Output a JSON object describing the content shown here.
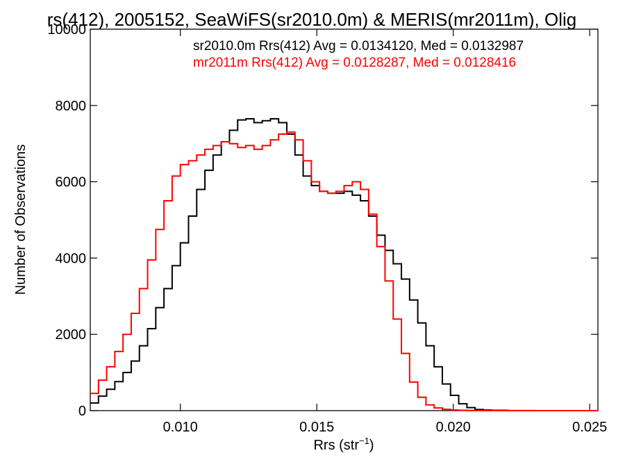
{
  "chart_data": {
    "type": "line",
    "title": "rs(412), 2005152, SeaWiFS(sr2010.0m) & MERIS(mr2011m), Olig",
    "xlabel": "Rrs (str",
    "xlabel_sup": "−1",
    "xlabel_close": ")",
    "ylabel": "Number of Observations",
    "xlim": [
      0.0067,
      0.0253
    ],
    "ylim": [
      0,
      10000
    ],
    "xticks": [
      0.01,
      0.015,
      0.02,
      0.025
    ],
    "xtick_labels": [
      "0.010",
      "0.015",
      "0.020",
      "0.025"
    ],
    "yticks": [
      0,
      2000,
      4000,
      6000,
      8000,
      10000
    ],
    "ytick_labels": [
      "0",
      "2000",
      "4000",
      "6000",
      "8000",
      "10000"
    ],
    "grid": false,
    "legend_position": "top",
    "series": [
      {
        "name": "sr2010.0m Rrs(412) Avg = 0.0134120, Med = 0.0132987",
        "color": "#000000",
        "x": [
          0.0067,
          0.007,
          0.0073,
          0.0076,
          0.0079,
          0.0082,
          0.0085,
          0.0088,
          0.0091,
          0.0094,
          0.0097,
          0.01,
          0.0103,
          0.0106,
          0.0109,
          0.0112,
          0.0115,
          0.0118,
          0.0121,
          0.0124,
          0.0127,
          0.013,
          0.0133,
          0.0136,
          0.0139,
          0.0142,
          0.0145,
          0.0148,
          0.0151,
          0.0154,
          0.0157,
          0.016,
          0.0163,
          0.0166,
          0.0169,
          0.0172,
          0.0175,
          0.0178,
          0.0181,
          0.0184,
          0.0187,
          0.019,
          0.0193,
          0.0196,
          0.0199,
          0.0202,
          0.0205,
          0.0208,
          0.0211,
          0.0214,
          0.022,
          0.023,
          0.0253
        ],
        "y": [
          200,
          380,
          560,
          760,
          1000,
          1300,
          1700,
          2150,
          2700,
          3200,
          3800,
          4400,
          5100,
          5800,
          6300,
          6700,
          7050,
          7350,
          7620,
          7650,
          7550,
          7600,
          7650,
          7550,
          7250,
          6700,
          6150,
          5900,
          5750,
          5700,
          5700,
          5750,
          5650,
          5500,
          5100,
          4600,
          4200,
          3850,
          3450,
          2900,
          2300,
          1700,
          1150,
          700,
          400,
          180,
          80,
          30,
          15,
          8,
          3,
          1,
          0
        ]
      },
      {
        "name": "mr2011m Rrs(412) Avg = 0.0128287, Med = 0.0128416",
        "color": "#ff0000",
        "x": [
          0.0067,
          0.007,
          0.0073,
          0.0076,
          0.0079,
          0.0082,
          0.0085,
          0.0088,
          0.0091,
          0.0094,
          0.0097,
          0.01,
          0.0103,
          0.0106,
          0.0109,
          0.0112,
          0.0115,
          0.0118,
          0.0121,
          0.0124,
          0.0127,
          0.013,
          0.0133,
          0.0136,
          0.0139,
          0.0142,
          0.0145,
          0.0148,
          0.0151,
          0.0154,
          0.0157,
          0.016,
          0.0163,
          0.0166,
          0.0169,
          0.0172,
          0.0175,
          0.0178,
          0.0181,
          0.0184,
          0.0187,
          0.019,
          0.0193,
          0.0196,
          0.0199,
          0.0202,
          0.0205,
          0.021,
          0.022,
          0.0253
        ],
        "y": [
          450,
          800,
          1150,
          1550,
          2000,
          2550,
          3200,
          3950,
          4750,
          5500,
          6150,
          6450,
          6550,
          6700,
          6850,
          6950,
          7050,
          7000,
          6900,
          6950,
          6850,
          6950,
          7100,
          7250,
          7300,
          7100,
          6550,
          6000,
          5750,
          5700,
          5750,
          5900,
          6000,
          5800,
          5150,
          4300,
          3400,
          2400,
          1500,
          750,
          350,
          150,
          70,
          35,
          15,
          8,
          4,
          2,
          1,
          0
        ]
      }
    ]
  }
}
